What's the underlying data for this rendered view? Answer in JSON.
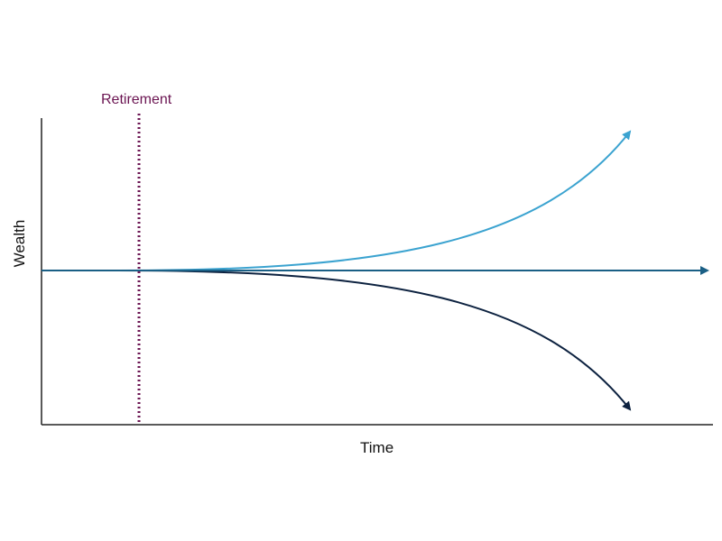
{
  "labels": {
    "retirement": "Retirement",
    "x_axis": "Time",
    "y_axis": "Wealth"
  },
  "colors": {
    "axis": "#222222",
    "retirement_line": "#6b1552",
    "upper_path": "#3ba3d0",
    "middle_path": "#1a5f85",
    "lower_path": "#0d2240"
  },
  "paths": [
    {
      "name": "upper-wealth-path",
      "trend": "rising"
    },
    {
      "name": "flat-wealth-path",
      "trend": "flat"
    },
    {
      "name": "lower-wealth-path",
      "trend": "falling"
    }
  ]
}
